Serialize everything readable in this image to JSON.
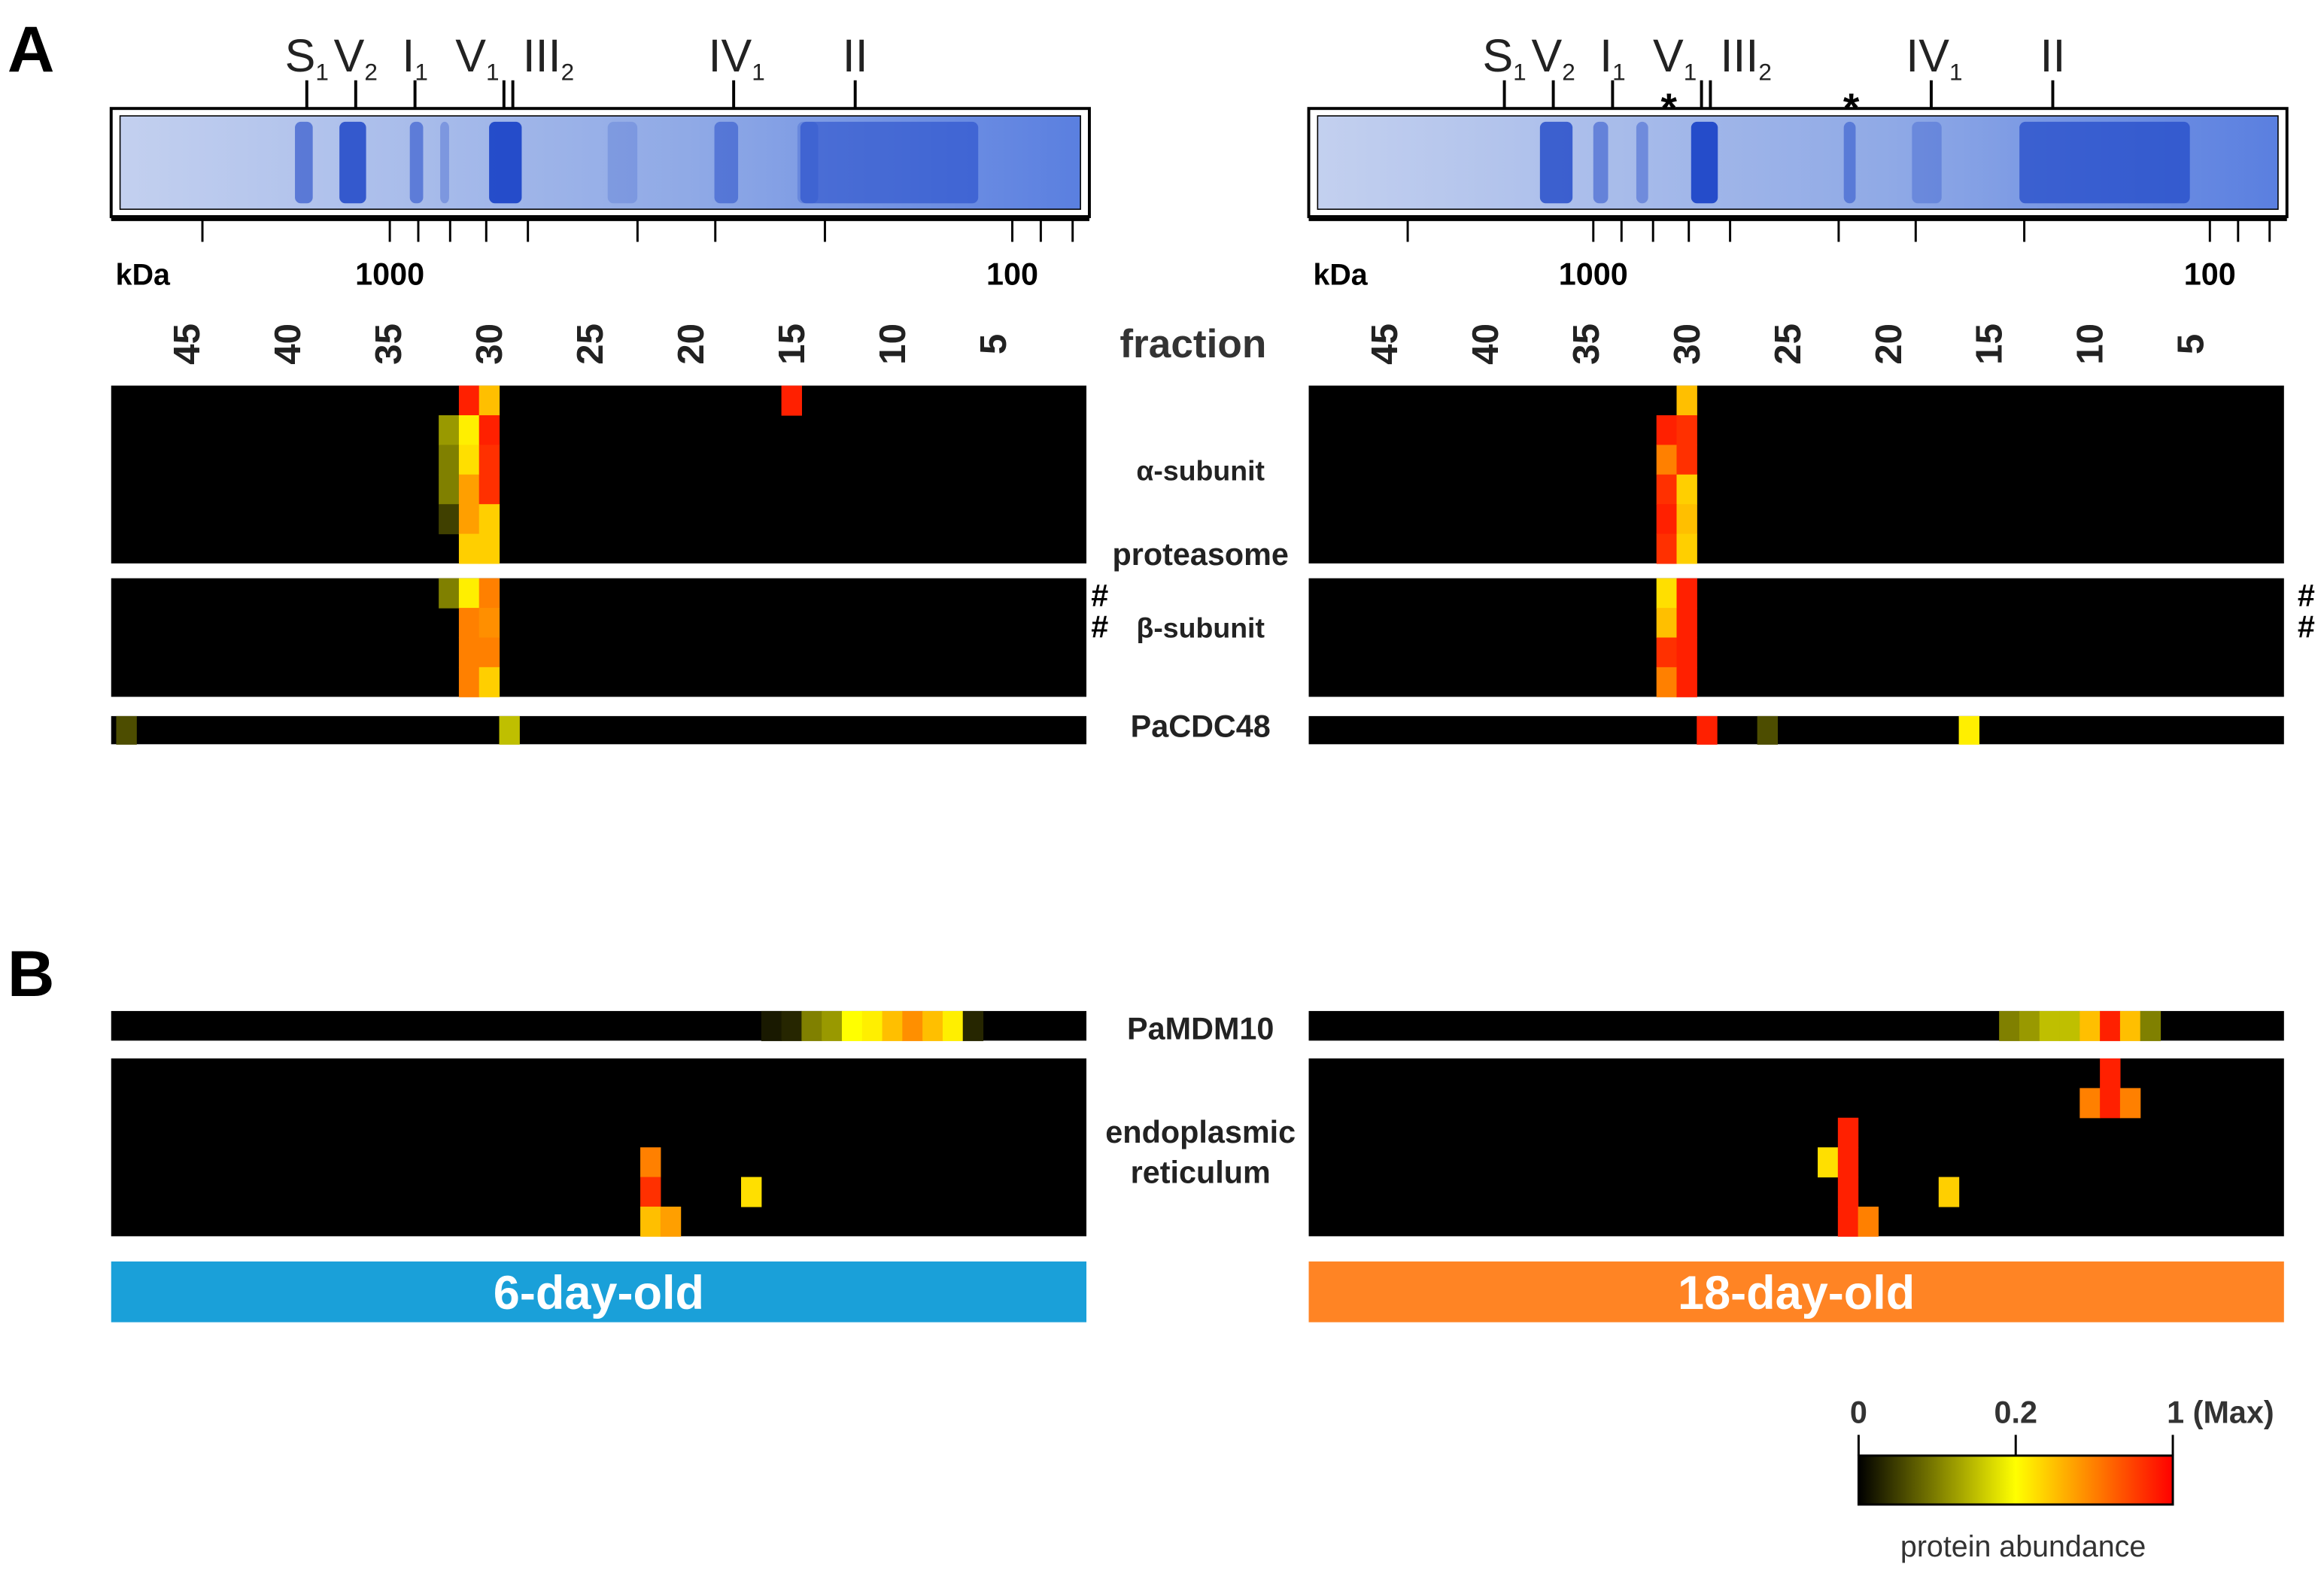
{
  "panel_labels": [
    "A",
    "B"
  ],
  "kda_label": "kDa",
  "kda_ticks": [
    2000,
    1000,
    900,
    800,
    700,
    600,
    400,
    300,
    200,
    100,
    90,
    80
  ],
  "kda_tick_labels": [
    1000,
    100
  ],
  "fraction_label": "fraction",
  "fractions": [
    45,
    40,
    35,
    30,
    25,
    20,
    15,
    10,
    5
  ],
  "row_labels": {
    "alpha": "α-subunit",
    "proteasome": "proteasome",
    "beta": "β-subunit",
    "hash": "#",
    "cdc48": "PaCDC48",
    "mdm10": "PaMDM10",
    "er": [
      "endoplasmic",
      "reticulum"
    ]
  },
  "colorbar": {
    "title": "protein abundance",
    "colormap": [
      "#000000",
      "#ffff00",
      "#ff0000"
    ],
    "ticks": [
      0,
      0.2,
      {
        "value": 1,
        "label": "1 (Max)"
      }
    ]
  },
  "panels": [
    {
      "age": "6-day-old",
      "color": "#1aa0d9",
      "complexes": [
        {
          "main": "S",
          "sub": "1"
        },
        {
          "main": "V",
          "sub": "2"
        },
        {
          "main": "I",
          "sub": "1"
        },
        {
          "main": "V",
          "sub": "1"
        },
        {
          "main": "III",
          "sub": "2"
        },
        {
          "main": "IV",
          "sub": "1"
        },
        {
          "main": "II"
        }
      ],
      "asterisks": [],
      "alpha": [
        {
          "f": 31,
          "r": 0,
          "v": 0.9
        },
        {
          "f": 30,
          "r": 0,
          "v": 0.4
        },
        {
          "f": 15,
          "r": 0,
          "v": 0.9
        },
        {
          "f": 32,
          "r": 1,
          "v": 0.12
        },
        {
          "f": 31,
          "r": 1,
          "v": 0.25
        },
        {
          "f": 30,
          "r": 1,
          "v": 0.9
        },
        {
          "f": 32,
          "r": 2,
          "v": 0.1
        },
        {
          "f": 31,
          "r": 2,
          "v": 0.3
        },
        {
          "f": 30,
          "r": 2,
          "v": 0.85
        },
        {
          "f": 32,
          "r": 3,
          "v": 0.1
        },
        {
          "f": 31,
          "r": 3,
          "v": 0.5
        },
        {
          "f": 30,
          "r": 3,
          "v": 0.85
        },
        {
          "f": 32,
          "r": 4,
          "v": 0.05
        },
        {
          "f": 31,
          "r": 4,
          "v": 0.5
        },
        {
          "f": 30,
          "r": 4,
          "v": 0.35
        },
        {
          "f": 31,
          "r": 5,
          "v": 0.35
        },
        {
          "f": 30,
          "r": 5,
          "v": 0.35
        }
      ],
      "beta": [
        {
          "f": 32,
          "r": 0,
          "v": 0.1
        },
        {
          "f": 31,
          "r": 0,
          "v": 0.25
        },
        {
          "f": 30,
          "r": 0,
          "v": 0.6
        },
        {
          "f": 31,
          "r": 1,
          "v": 0.6
        },
        {
          "f": 30,
          "r": 1,
          "v": 0.55
        },
        {
          "f": 31,
          "r": 2,
          "v": 0.6
        },
        {
          "f": 30,
          "r": 2,
          "v": 0.6
        },
        {
          "f": 31,
          "r": 3,
          "v": 0.6
        },
        {
          "f": 30,
          "r": 3,
          "v": 0.35
        }
      ],
      "cdc48": [
        {
          "f": 48,
          "r": 0,
          "v": 0.06
        },
        {
          "f": 29,
          "r": 0,
          "v": 0.15
        }
      ],
      "mdm10": [
        {
          "f": 16,
          "r": 0,
          "v": 0.02
        },
        {
          "f": 15,
          "r": 0,
          "v": 0.03
        },
        {
          "f": 14,
          "r": 0,
          "v": 0.1
        },
        {
          "f": 13,
          "r": 0,
          "v": 0.12
        },
        {
          "f": 12,
          "r": 0,
          "v": 0.2
        },
        {
          "f": 11,
          "r": 0,
          "v": 0.25
        },
        {
          "f": 10,
          "r": 0,
          "v": 0.4
        },
        {
          "f": 9,
          "r": 0,
          "v": 0.55
        },
        {
          "f": 8,
          "r": 0,
          "v": 0.4
        },
        {
          "f": 7,
          "r": 0,
          "v": 0.25
        },
        {
          "f": 6,
          "r": 0,
          "v": 0.03
        }
      ],
      "er": [
        {
          "f": 22,
          "r": 3,
          "v": 0.6
        },
        {
          "f": 22,
          "r": 4,
          "v": 0.85
        },
        {
          "f": 17,
          "r": 4,
          "v": 0.3
        },
        {
          "f": 22,
          "r": 5,
          "v": 0.4
        },
        {
          "f": 21,
          "r": 5,
          "v": 0.5
        }
      ]
    },
    {
      "age": "18-day-old",
      "color": "#ff8424",
      "complexes": [
        {
          "main": "S",
          "sub": "1"
        },
        {
          "main": "V",
          "sub": "2"
        },
        {
          "main": "I",
          "sub": "1"
        },
        {
          "main": "V",
          "sub": "1"
        },
        {
          "main": "III",
          "sub": "2"
        },
        {
          "main": "IV",
          "sub": "1"
        },
        {
          "main": "II"
        }
      ],
      "asterisks": [
        "*",
        "*"
      ],
      "alpha": [
        {
          "f": 30,
          "r": 0,
          "v": 0.4
        },
        {
          "f": 31,
          "r": 1,
          "v": 0.9
        },
        {
          "f": 30,
          "r": 1,
          "v": 0.85
        },
        {
          "f": 31,
          "r": 2,
          "v": 0.6
        },
        {
          "f": 30,
          "r": 2,
          "v": 0.85
        },
        {
          "f": 31,
          "r": 3,
          "v": 0.85
        },
        {
          "f": 30,
          "r": 3,
          "v": 0.35
        },
        {
          "f": 31,
          "r": 4,
          "v": 0.9
        },
        {
          "f": 30,
          "r": 4,
          "v": 0.4
        },
        {
          "f": 31,
          "r": 5,
          "v": 0.85
        },
        {
          "f": 30,
          "r": 5,
          "v": 0.35
        }
      ],
      "beta": [
        {
          "f": 31,
          "r": 0,
          "v": 0.3
        },
        {
          "f": 30,
          "r": 0,
          "v": 0.9
        },
        {
          "f": 31,
          "r": 1,
          "v": 0.4
        },
        {
          "f": 30,
          "r": 1,
          "v": 0.9
        },
        {
          "f": 31,
          "r": 2,
          "v": 0.85
        },
        {
          "f": 30,
          "r": 2,
          "v": 0.9
        },
        {
          "f": 31,
          "r": 3,
          "v": 0.6
        },
        {
          "f": 30,
          "r": 3,
          "v": 0.9
        }
      ],
      "cdc48": [
        {
          "f": 29,
          "r": 0,
          "v": 0.9
        },
        {
          "f": 26,
          "r": 0,
          "v": 0.06
        },
        {
          "f": 16,
          "r": 0,
          "v": 0.25
        }
      ],
      "mdm10": [
        {
          "f": 14,
          "r": 0,
          "v": 0.1
        },
        {
          "f": 13,
          "r": 0,
          "v": 0.12
        },
        {
          "f": 12,
          "r": 0,
          "v": 0.15
        },
        {
          "f": 11,
          "r": 0,
          "v": 0.15
        },
        {
          "f": 10,
          "r": 0,
          "v": 0.4
        },
        {
          "f": 9,
          "r": 0,
          "v": 0.9
        },
        {
          "f": 8,
          "r": 0,
          "v": 0.4
        },
        {
          "f": 7,
          "r": 0,
          "v": 0.1
        }
      ],
      "er": [
        {
          "f": 9,
          "r": 0,
          "v": 0.9
        },
        {
          "f": 10,
          "r": 1,
          "v": 0.6
        },
        {
          "f": 9,
          "r": 1,
          "v": 0.9
        },
        {
          "f": 8,
          "r": 1,
          "v": 0.6
        },
        {
          "f": 22,
          "r": 2,
          "v": 0.9
        },
        {
          "f": 23,
          "r": 3,
          "v": 0.3
        },
        {
          "f": 22,
          "r": 3,
          "v": 0.9
        },
        {
          "f": 22,
          "r": 4,
          "v": 0.9
        },
        {
          "f": 17,
          "r": 4,
          "v": 0.35
        },
        {
          "f": 22,
          "r": 5,
          "v": 0.9
        },
        {
          "f": 21,
          "r": 5,
          "v": 0.6
        }
      ]
    }
  ]
}
